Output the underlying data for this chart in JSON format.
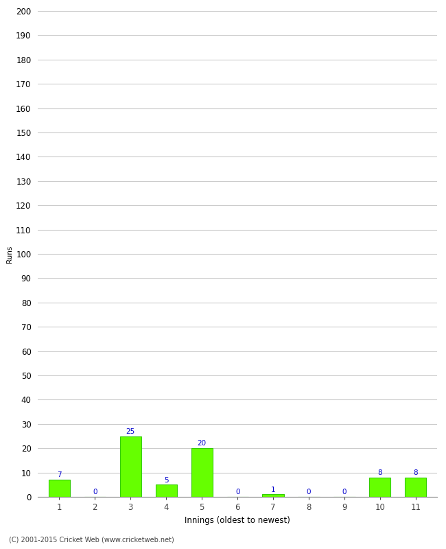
{
  "xlabel": "Innings (oldest to newest)",
  "ylabel": "Runs",
  "categories": [
    1,
    2,
    3,
    4,
    5,
    6,
    7,
    8,
    9,
    10,
    11
  ],
  "values": [
    7,
    0,
    25,
    5,
    20,
    0,
    1,
    0,
    0,
    8,
    8
  ],
  "bar_color": "#66ff00",
  "bar_edge_color": "#33cc00",
  "label_color": "#0000cc",
  "ylim": [
    0,
    200
  ],
  "yticks": [
    0,
    10,
    20,
    30,
    40,
    50,
    60,
    70,
    80,
    90,
    100,
    110,
    120,
    130,
    140,
    150,
    160,
    170,
    180,
    190,
    200
  ],
  "label_fontsize": 7.5,
  "axis_fontsize": 8.5,
  "ylabel_fontsize": 7.5,
  "xlabel_fontsize": 8.5,
  "footer": "(C) 2001-2015 Cricket Web (www.cricketweb.net)",
  "background_color": "#ffffff",
  "grid_color": "#cccccc"
}
